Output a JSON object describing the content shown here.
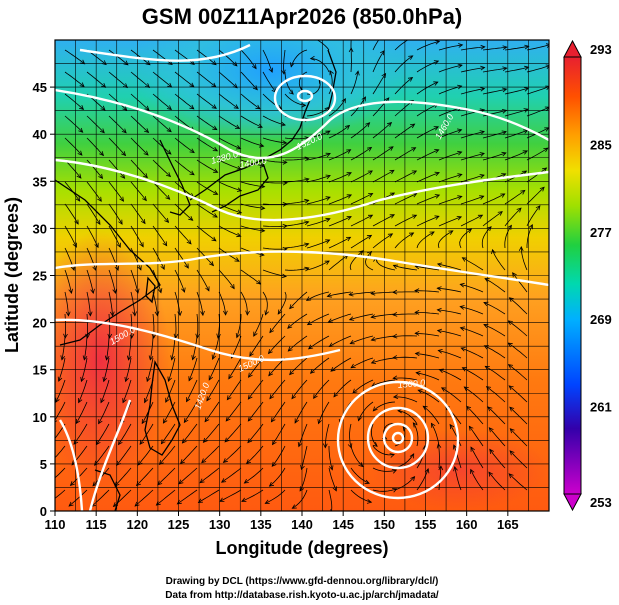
{
  "title": "GSM 00Z11Apr2026 (850.0hPa)",
  "x_axis": {
    "label": "Longitude (degrees)",
    "range": [
      110,
      170
    ],
    "ticks": [
      "110",
      "115",
      "120",
      "125",
      "130",
      "135",
      "140",
      "145",
      "150",
      "155",
      "160",
      "165"
    ]
  },
  "y_axis": {
    "label": "Latitude (degrees)",
    "range": [
      0,
      50
    ],
    "ticks": [
      "0",
      "5",
      "10",
      "15",
      "20",
      "25",
      "30",
      "35",
      "40",
      "45"
    ]
  },
  "colorbar": {
    "ticks": [
      "293",
      "285",
      "277",
      "269",
      "261",
      "253"
    ],
    "min": 253,
    "max": 293,
    "colors": [
      "#cc00cc",
      "#3300aa",
      "#0044ff",
      "#00b0ff",
      "#00d8b0",
      "#20d040",
      "#a0e000",
      "#f0e000",
      "#ffa000",
      "#ff5000",
      "#e82030"
    ]
  },
  "contour_labels": [
    "1520.0",
    "1500.0",
    "1480.0",
    "1460.0",
    "1400.0",
    "1380.0",
    "1500.0",
    "1500.0",
    "1420.0"
  ],
  "credits": {
    "line1": "Drawing by DCL (https://www.gfd-dennou.org/library/dcl/)",
    "line2": "Data from http://database.rish.kyoto-u.ac.jp/arch/jmadata/"
  }
}
